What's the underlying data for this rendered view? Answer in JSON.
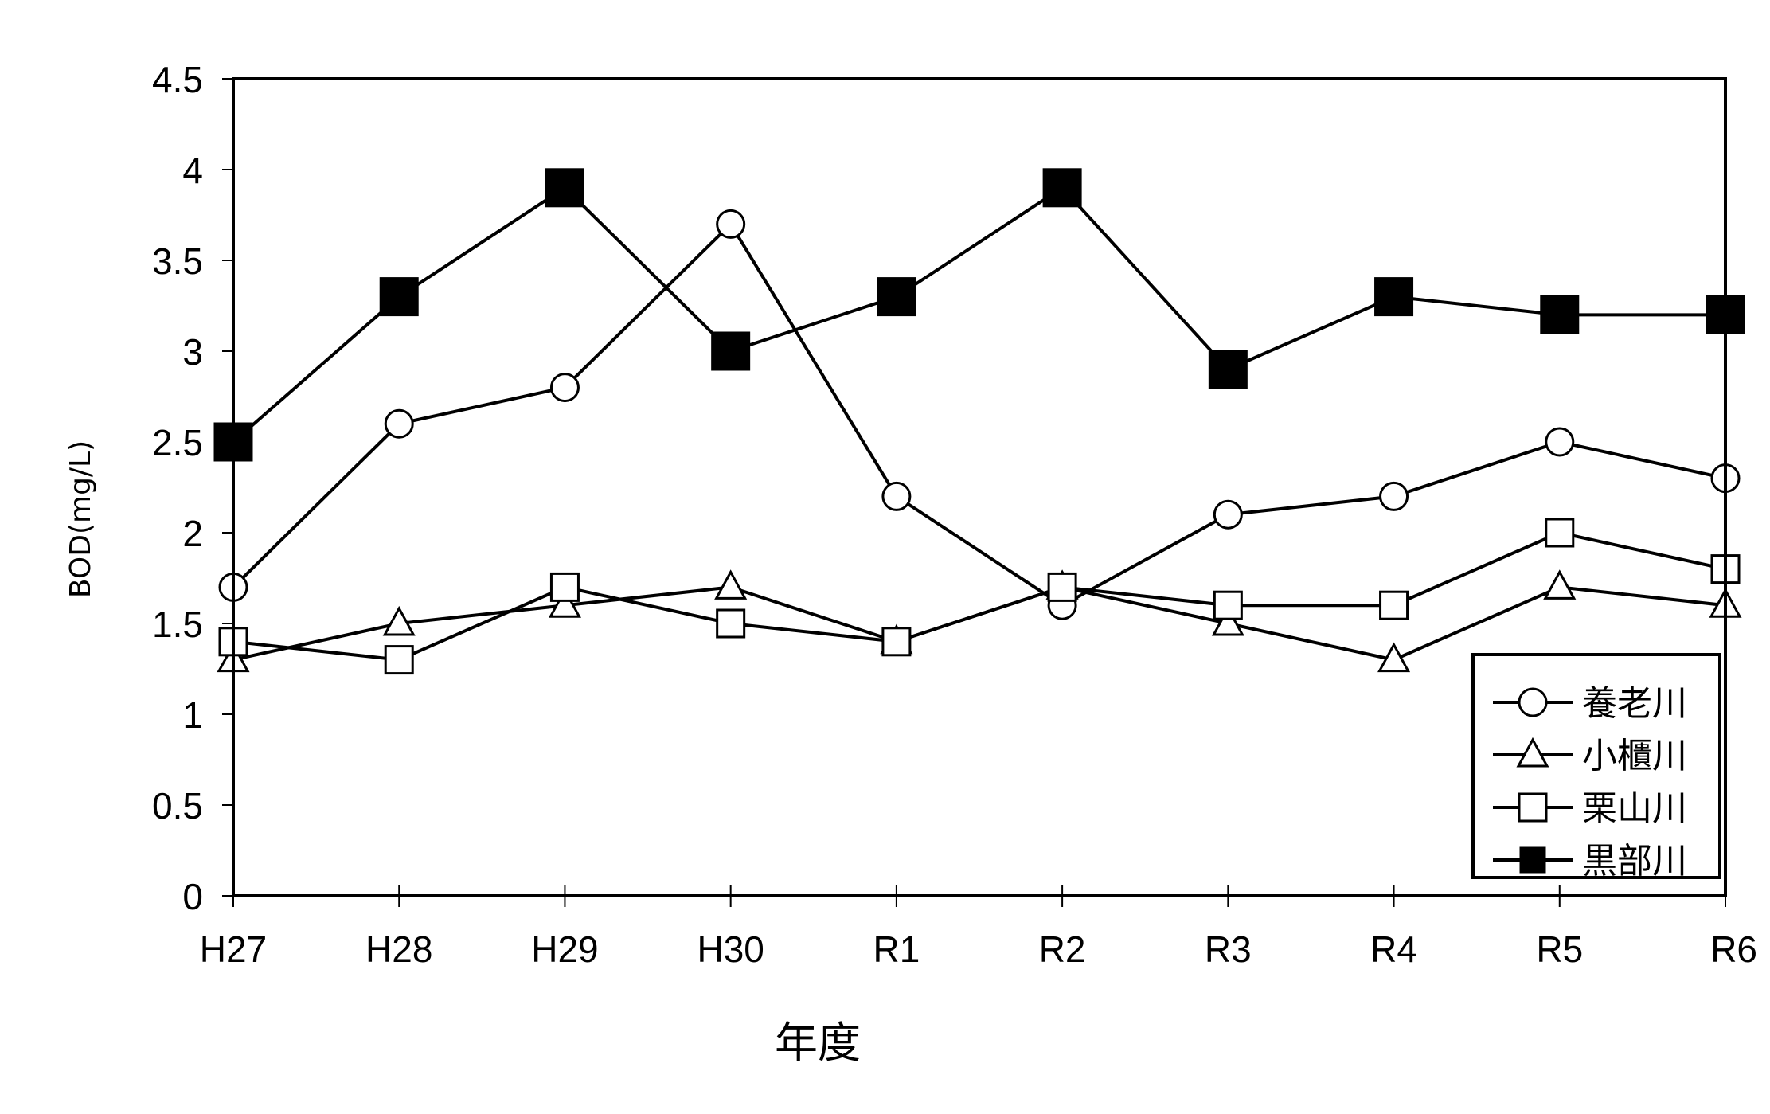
{
  "chart_data": {
    "type": "line",
    "categories": [
      "H27",
      "H28",
      "H29",
      "H30",
      "R1",
      "R2",
      "R3",
      "R4",
      "R5",
      "R6"
    ],
    "xlabel": "年度",
    "ylabel": "BOD(mg/L)",
    "ylim": [
      0,
      4.5
    ],
    "yticks": [
      "0",
      "0.5",
      "1",
      "1.5",
      "2",
      "2.5",
      "3",
      "3.5",
      "4",
      "4.5"
    ],
    "grid": false,
    "legend_position": "bottom-right",
    "series": [
      {
        "name": "養老川",
        "marker": "circle-open",
        "values": [
          1.7,
          2.6,
          2.8,
          3.7,
          2.2,
          1.6,
          2.1,
          2.2,
          2.5,
          2.3
        ]
      },
      {
        "name": "小櫃川",
        "marker": "triangle-open",
        "values": [
          1.3,
          1.5,
          1.6,
          1.7,
          1.4,
          1.7,
          1.5,
          1.3,
          1.7,
          1.6
        ]
      },
      {
        "name": "栗山川",
        "marker": "square-open",
        "values": [
          1.4,
          1.3,
          1.7,
          1.5,
          1.4,
          1.7,
          1.6,
          1.6,
          2.0,
          1.8
        ]
      },
      {
        "name": "黒部川",
        "marker": "square-filled",
        "values": [
          2.5,
          3.3,
          3.9,
          3.0,
          3.3,
          3.9,
          2.9,
          3.3,
          3.2,
          3.2
        ]
      }
    ],
    "colors": {
      "line": "#000000",
      "background": "#ffffff"
    }
  }
}
